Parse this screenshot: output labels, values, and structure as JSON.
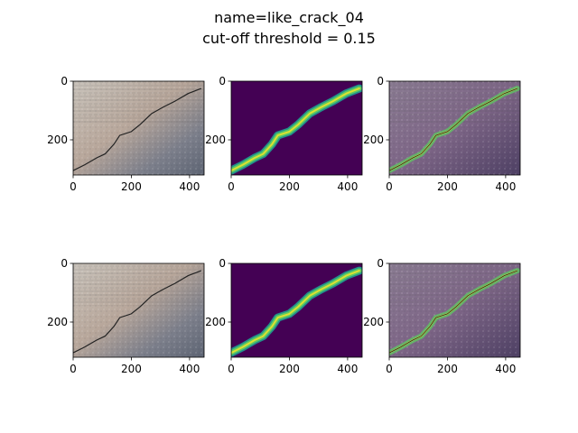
{
  "figure": {
    "title_lines": [
      "name=like_crack_04",
      "cut-off threshold = 0.15"
    ]
  },
  "colors": {
    "viridis_bg": "#440154",
    "viridis_mid": "#21918c",
    "viridis_hi": "#5ec962",
    "viridis_top": "#fde725",
    "crack": "#222222"
  },
  "chart_data": [
    {
      "type": "heatmap",
      "kind": "photo",
      "row": 0,
      "col": 0,
      "xlim": [
        0,
        450
      ],
      "ylim": [
        320,
        0
      ],
      "xticks": [
        0,
        200,
        400
      ],
      "yticks": [
        0,
        200
      ],
      "xlabel": "",
      "ylabel": ""
    },
    {
      "type": "heatmap",
      "kind": "mask",
      "row": 0,
      "col": 1,
      "xlim": [
        0,
        450
      ],
      "ylim": [
        320,
        0
      ],
      "xticks": [
        0,
        200,
        400
      ],
      "yticks": [
        0,
        200
      ],
      "xlabel": "",
      "ylabel": ""
    },
    {
      "type": "heatmap",
      "kind": "overlay",
      "row": 0,
      "col": 2,
      "xlim": [
        0,
        450
      ],
      "ylim": [
        320,
        0
      ],
      "xticks": [
        0,
        200,
        400
      ],
      "yticks": [
        0,
        200
      ],
      "xlabel": "",
      "ylabel": ""
    },
    {
      "type": "heatmap",
      "kind": "photo",
      "row": 1,
      "col": 0,
      "xlim": [
        0,
        450
      ],
      "ylim": [
        320,
        0
      ],
      "xticks": [
        0,
        200,
        400
      ],
      "yticks": [
        0,
        200
      ],
      "xlabel": "",
      "ylabel": ""
    },
    {
      "type": "heatmap",
      "kind": "mask",
      "row": 1,
      "col": 1,
      "xlim": [
        0,
        450
      ],
      "ylim": [
        320,
        0
      ],
      "xticks": [
        0,
        200,
        400
      ],
      "yticks": [
        0,
        200
      ],
      "xlabel": "",
      "ylabel": ""
    },
    {
      "type": "heatmap",
      "kind": "overlay",
      "row": 1,
      "col": 2,
      "xlim": [
        0,
        450
      ],
      "ylim": [
        320,
        0
      ],
      "xticks": [
        0,
        200,
        400
      ],
      "yticks": [
        0,
        200
      ],
      "xlabel": "",
      "ylabel": ""
    }
  ],
  "crack_path": [
    [
      0,
      305
    ],
    [
      40,
      285
    ],
    [
      80,
      262
    ],
    [
      110,
      248
    ],
    [
      140,
      215
    ],
    [
      160,
      185
    ],
    [
      200,
      172
    ],
    [
      230,
      148
    ],
    [
      270,
      110
    ],
    [
      310,
      88
    ],
    [
      350,
      68
    ],
    [
      395,
      42
    ],
    [
      440,
      25
    ]
  ]
}
